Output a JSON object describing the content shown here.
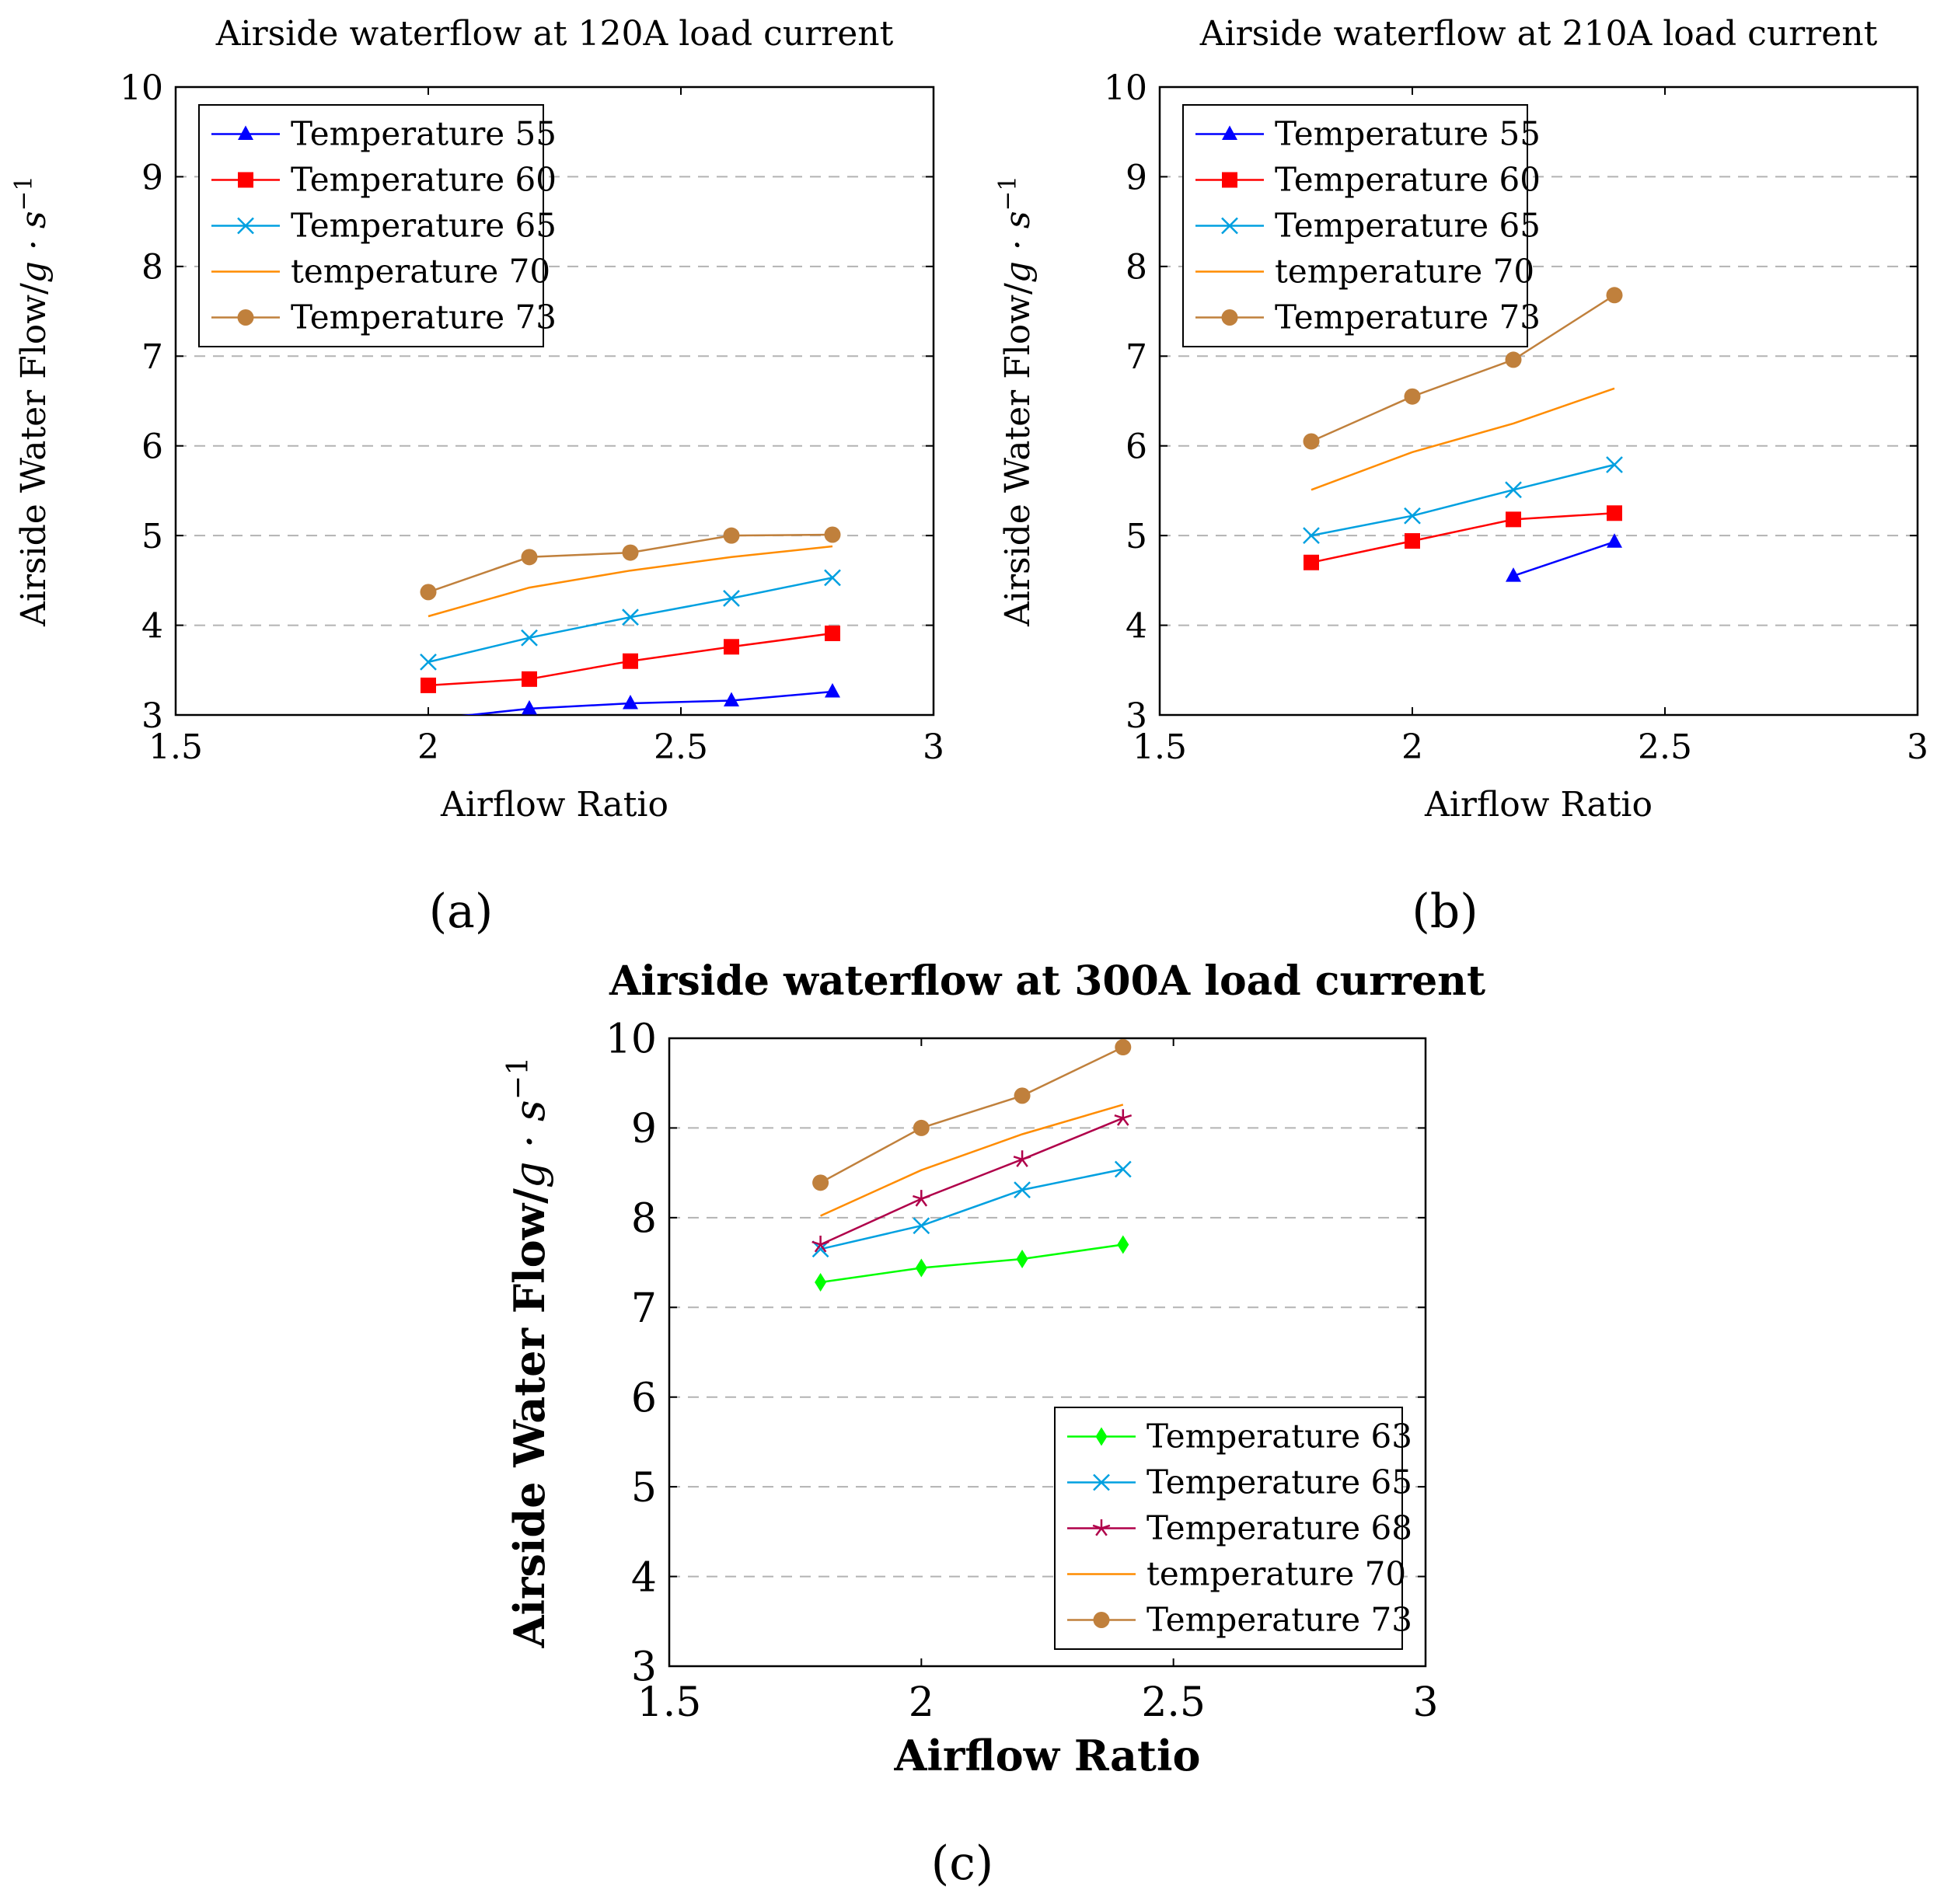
{
  "figure": {
    "panel_labels": [
      "(a)",
      "(b)",
      "(c)"
    ]
  },
  "chart_data": [
    {
      "type": "line",
      "title": "Airside waterflow at 120A load current",
      "xlabel": "Airflow Ratio",
      "ylabel": "Airside Water Flow/",
      "ylabel_unit": "g · s",
      "ylabel_exp": "−1",
      "xlim": [
        1.5,
        3
      ],
      "ylim": [
        3,
        10
      ],
      "xticks": [
        "1.5",
        "2",
        "2.5",
        "3"
      ],
      "yticks": [
        "3",
        "4",
        "5",
        "6",
        "7",
        "8",
        "9",
        "10"
      ],
      "grid": "horizontal dashed",
      "legend_position": "top-left",
      "series": [
        {
          "name": "Temperature 55",
          "color": "#0000ff",
          "marker": "triangle",
          "x": [
            2.0,
            2.2,
            2.4,
            2.6,
            2.8
          ],
          "y": [
            2.95,
            3.07,
            3.13,
            3.16,
            3.26
          ]
        },
        {
          "name": "Temperature 60",
          "color": "#ff0000",
          "marker": "square",
          "x": [
            2.0,
            2.2,
            2.4,
            2.6,
            2.8
          ],
          "y": [
            3.33,
            3.4,
            3.6,
            3.76,
            3.91
          ]
        },
        {
          "name": "Temperature 65",
          "color": "#00a0e0",
          "marker": "x",
          "x": [
            2.0,
            2.2,
            2.4,
            2.6,
            2.8
          ],
          "y": [
            3.59,
            3.86,
            4.09,
            4.3,
            4.53
          ]
        },
        {
          "name": "temperature 70",
          "color": "#ff8c00",
          "marker": "none",
          "x": [
            2.0,
            2.2,
            2.4,
            2.6,
            2.8
          ],
          "y": [
            4.1,
            4.42,
            4.61,
            4.76,
            4.88
          ]
        },
        {
          "name": "Temperature 73",
          "color": "#c0803c",
          "marker": "circle",
          "x": [
            2.0,
            2.2,
            2.4,
            2.6,
            2.8
          ],
          "y": [
            4.37,
            4.76,
            4.81,
            5.0,
            5.01
          ]
        }
      ]
    },
    {
      "type": "line",
      "title": "Airside waterflow at 210A load current",
      "xlabel": "Airflow Ratio",
      "ylabel": "Airside Water Flow/",
      "ylabel_unit": "g · s",
      "ylabel_exp": "−1",
      "xlim": [
        1.5,
        3
      ],
      "ylim": [
        3,
        10
      ],
      "xticks": [
        "1.5",
        "2",
        "2.5",
        "3"
      ],
      "yticks": [
        "3",
        "4",
        "5",
        "6",
        "7",
        "8",
        "9",
        "10"
      ],
      "grid": "horizontal dashed",
      "legend_position": "top-left",
      "series": [
        {
          "name": "Temperature 55",
          "color": "#0000ff",
          "marker": "triangle",
          "x": [
            2.2,
            2.4
          ],
          "y": [
            4.55,
            4.93
          ]
        },
        {
          "name": "Temperature 60",
          "color": "#ff0000",
          "marker": "square",
          "x": [
            1.8,
            2.0,
            2.2,
            2.4
          ],
          "y": [
            4.7,
            4.94,
            5.18,
            5.25
          ]
        },
        {
          "name": "Temperature 65",
          "color": "#00a0e0",
          "marker": "x",
          "x": [
            1.8,
            2.0,
            2.2,
            2.4
          ],
          "y": [
            5.0,
            5.22,
            5.51,
            5.79
          ]
        },
        {
          "name": "temperature 70",
          "color": "#ff8c00",
          "marker": "none",
          "x": [
            1.8,
            2.0,
            2.2,
            2.4
          ],
          "y": [
            5.51,
            5.93,
            6.25,
            6.64
          ]
        },
        {
          "name": "Temperature 73",
          "color": "#c0803c",
          "marker": "circle",
          "x": [
            1.8,
            2.0,
            2.2,
            2.4
          ],
          "y": [
            6.05,
            6.55,
            6.96,
            7.68
          ]
        }
      ]
    },
    {
      "type": "line",
      "title": "Airside waterflow at 300A load current",
      "xlabel": "Airflow Ratio",
      "ylabel": "Airside Water Flow/",
      "ylabel_unit": "g · s",
      "ylabel_exp": "−1",
      "xlim": [
        1.5,
        3
      ],
      "ylim": [
        3,
        10
      ],
      "xticks": [
        "1.5",
        "2",
        "2.5",
        "3"
      ],
      "yticks": [
        "3",
        "4",
        "5",
        "6",
        "7",
        "8",
        "9",
        "10"
      ],
      "grid": "horizontal dashed",
      "legend_position": "bottom-right",
      "series": [
        {
          "name": "Temperature 63",
          "color": "#00ff00",
          "marker": "diamond",
          "x": [
            1.8,
            2.0,
            2.2,
            2.4
          ],
          "y": [
            7.28,
            7.44,
            7.54,
            7.7
          ]
        },
        {
          "name": "Temperature 65",
          "color": "#00a0e0",
          "marker": "x",
          "x": [
            1.8,
            2.0,
            2.2,
            2.4
          ],
          "y": [
            7.65,
            7.91,
            8.31,
            8.54
          ]
        },
        {
          "name": "Temperature 68",
          "color": "#b0004a",
          "marker": "star",
          "x": [
            1.8,
            2.0,
            2.2,
            2.4
          ],
          "y": [
            7.7,
            8.21,
            8.65,
            9.11
          ]
        },
        {
          "name": "temperature 70",
          "color": "#ff8c00",
          "marker": "none",
          "x": [
            1.8,
            2.0,
            2.2,
            2.4
          ],
          "y": [
            8.02,
            8.53,
            8.93,
            9.26
          ]
        },
        {
          "name": "Temperature 73",
          "color": "#c0803c",
          "marker": "circle",
          "x": [
            1.8,
            2.0,
            2.2,
            2.4
          ],
          "y": [
            8.39,
            9.0,
            9.36,
            9.9
          ]
        }
      ]
    }
  ]
}
